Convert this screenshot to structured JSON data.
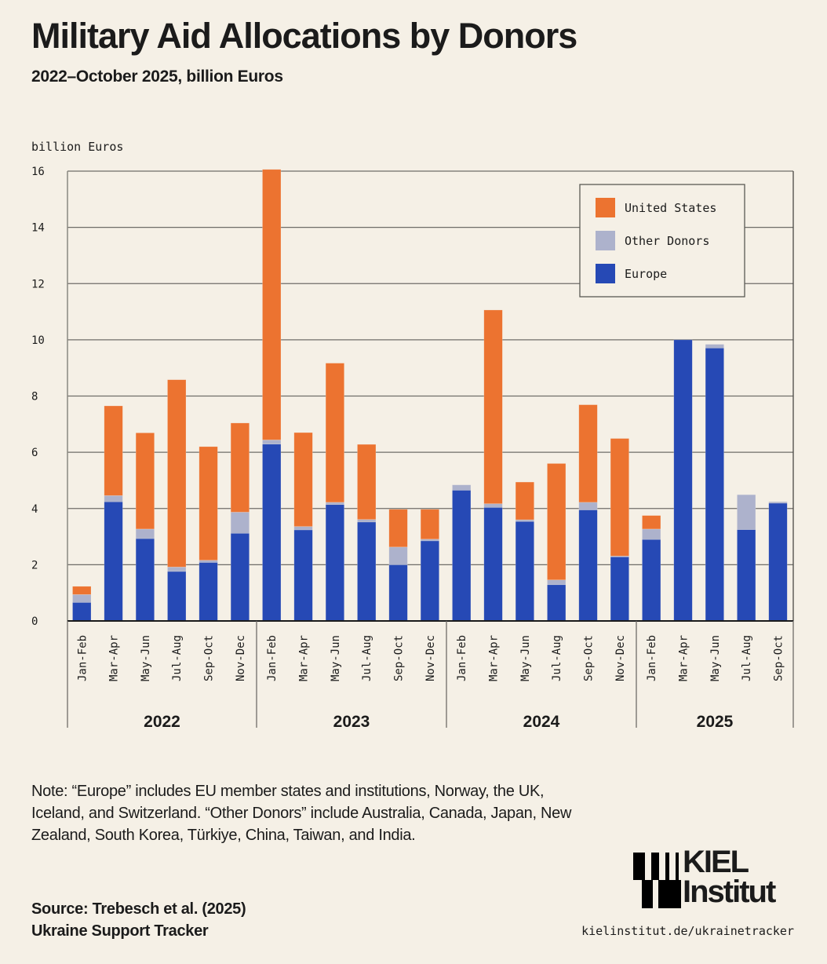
{
  "header": {
    "title": "Military Aid Allocations by Donors",
    "subtitle": "2022–October 2025, billion Euros"
  },
  "colors": {
    "background": "#f5f0e6",
    "united_states": "#ec7330",
    "other_donors": "#adb2cc",
    "europe": "#2649b5"
  },
  "chart_data": {
    "type": "bar",
    "stacked": true,
    "title": "Military Aid Allocations by Donors",
    "subtitle": "2022–October 2025, billion Euros",
    "xlabel": "",
    "ylabel": "billion Euros",
    "ylim": [
      0,
      16
    ],
    "yticks": [
      0,
      2,
      4,
      6,
      8,
      10,
      12,
      14,
      16
    ],
    "grid": true,
    "legend_position": "top-right",
    "groups": [
      {
        "year": "2022",
        "categories": [
          "Jan-Feb",
          "Mar-Apr",
          "May-Jun",
          "Jul-Aug",
          "Sep-Oct",
          "Nov-Dec"
        ]
      },
      {
        "year": "2023",
        "categories": [
          "Jan-Feb",
          "Mar-Apr",
          "May-Jun",
          "Jul-Aug",
          "Sep-Oct",
          "Nov-Dec"
        ]
      },
      {
        "year": "2024",
        "categories": [
          "Jan-Feb",
          "Mar-Apr",
          "May-Jun",
          "Jul-Aug",
          "Sep-Oct",
          "Nov-Dec"
        ]
      },
      {
        "year": "2025",
        "categories": [
          "Jan-Feb",
          "Mar-Apr",
          "May-Jun",
          "Jul-Aug",
          "Sep-Oct"
        ]
      }
    ],
    "categories": [
      "2022 Jan-Feb",
      "2022 Mar-Apr",
      "2022 May-Jun",
      "2022 Jul-Aug",
      "2022 Sep-Oct",
      "2022 Nov-Dec",
      "2023 Jan-Feb",
      "2023 Mar-Apr",
      "2023 May-Jun",
      "2023 Jul-Aug",
      "2023 Sep-Oct",
      "2023 Nov-Dec",
      "2024 Jan-Feb",
      "2024 Mar-Apr",
      "2024 May-Jun",
      "2024 Jul-Aug",
      "2024 Sep-Oct",
      "2024 Nov-Dec",
      "2025 Jan-Feb",
      "2025 Mar-Apr",
      "2025 May-Jun",
      "2025 Jul-Aug",
      "2025 Sep-Oct"
    ],
    "series": [
      {
        "name": "Europe",
        "color_key": "europe",
        "values": [
          0.66,
          4.24,
          2.93,
          1.76,
          2.08,
          3.12,
          6.29,
          3.24,
          4.14,
          3.52,
          2.0,
          2.85,
          4.65,
          4.04,
          3.54,
          1.29,
          3.95,
          2.28,
          2.9,
          10.0,
          9.71,
          3.25,
          4.19
        ]
      },
      {
        "name": "Other Donors",
        "color_key": "other_donors",
        "values": [
          0.28,
          0.22,
          0.34,
          0.16,
          0.08,
          0.75,
          0.15,
          0.12,
          0.08,
          0.09,
          0.63,
          0.06,
          0.19,
          0.13,
          0.06,
          0.17,
          0.27,
          0.03,
          0.37,
          0.0,
          0.13,
          1.24,
          0.05
        ]
      },
      {
        "name": "United States",
        "color_key": "united_states",
        "values": [
          0.29,
          3.19,
          3.42,
          6.66,
          4.04,
          3.17,
          9.62,
          3.34,
          4.95,
          2.67,
          1.34,
          1.06,
          0.0,
          6.89,
          1.34,
          4.14,
          3.47,
          4.18,
          0.48,
          0.0,
          0.0,
          0.0,
          0.0
        ]
      }
    ],
    "legend": [
      "United States",
      "Other Donors",
      "Europe"
    ]
  },
  "footer": {
    "note": "Note: “Europe” includes EU member states and institutions, Norway, the UK, Iceland, and Switzerland. “Other Donors” include Australia, Canada, Japan, New Zealand, South Korea, Türkiye, China, Taiwan, and India.",
    "source_line1": "Source: Trebesch et al. (2025)",
    "source_line2": "Ukraine Support Tracker",
    "logo_line1": "KIEL",
    "logo_line2": "Institut",
    "url": "kielinstitut.de/ukrainetracker"
  }
}
